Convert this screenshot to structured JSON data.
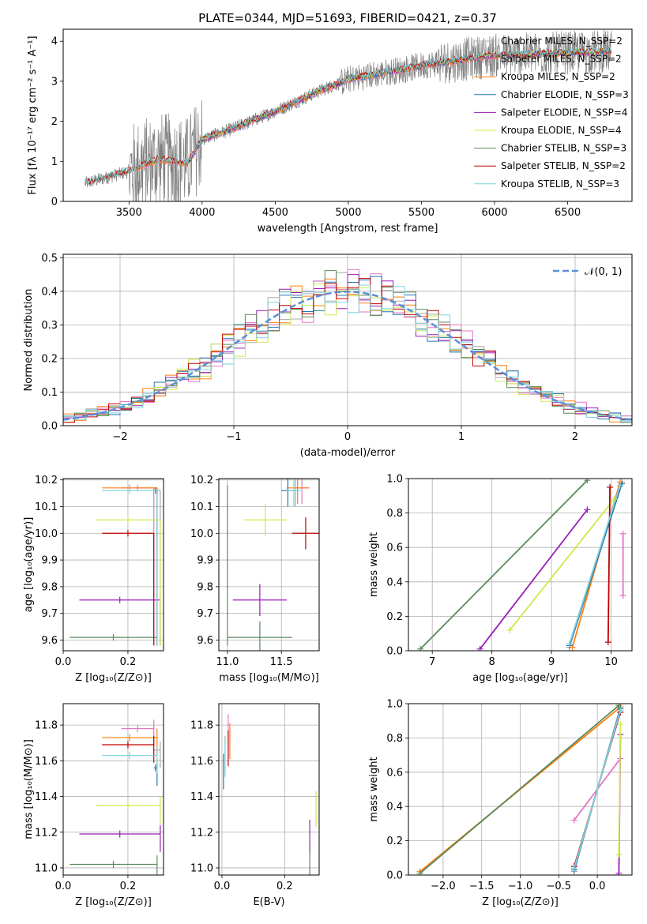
{
  "title": "PLATE=0344, MJD=51693, FIBERID=0421, z=0.37",
  "colors": {
    "chabrier_miles": "#aaaaaa",
    "salpeter_miles": "#e377c2",
    "kroupa_miles": "#ff7f0e",
    "chabrier_elodie": "#1f77b4",
    "salpeter_elodie": "#9a1ab8",
    "kroupa_elodie": "#cfe84a",
    "chabrier_stelib": "#5a8a5a",
    "salpeter_stelib": "#c00000",
    "kroupa_stelib": "#7fd3e0",
    "normal_curve": "#5b8fd6",
    "spectrum": "#808080"
  },
  "chart_data": [
    {
      "id": "spectrum",
      "type": "line",
      "xlabel": "wavelength [Angstrom, rest frame]",
      "ylabel": "Flux [fλ 10⁻¹⁷ erg cm⁻² s⁻¹ A⁻¹]",
      "xlim": [
        3050,
        6940
      ],
      "ylim": [
        0,
        4.3
      ],
      "xticks": [
        "3500",
        "4000",
        "4500",
        "5000",
        "5500",
        "6000",
        "6500"
      ],
      "yticks": [
        "0",
        "1",
        "2",
        "3",
        "4"
      ],
      "grid": false,
      "legend_position": "top-right",
      "data_range": [
        3200,
        6800
      ],
      "model_breakpoints": {
        "x": [
          3200,
          3350,
          3500,
          3700,
          3900,
          4000,
          4200,
          4500,
          4800,
          5000,
          5300,
          5600,
          6000,
          6400,
          6800
        ],
        "y": [
          0.45,
          0.6,
          0.75,
          1.05,
          0.95,
          1.55,
          1.8,
          2.25,
          2.75,
          3.05,
          3.25,
          3.45,
          3.65,
          3.7,
          3.75
        ]
      },
      "legend": [
        "Chabrier MILES, N_SSP=2",
        "Salpeter MILES, N_SSP=2",
        "Kroupa MILES, N_SSP=2",
        "Chabrier ELODIE, N_SSP=3",
        "Salpeter ELODIE, N_SSP=4",
        "Kroupa ELODIE, N_SSP=4",
        "Chabrier STELIB, N_SSP=3",
        "Salpeter STELIB, N_SSP=2",
        "Kroupa STELIB, N_SSP=3"
      ]
    },
    {
      "id": "residuals",
      "type": "line",
      "xlabel": "(data-model)/error",
      "ylabel": "Normed distribution",
      "xlim": [
        -2.5,
        2.5
      ],
      "ylim": [
        0,
        0.51
      ],
      "xticks": [
        "−2",
        "−1",
        "0",
        "1",
        "2"
      ],
      "yticks": [
        "0.0",
        "0.1",
        "0.2",
        "0.3",
        "0.4",
        "0.5"
      ],
      "grid": true,
      "legend_position": "top-right",
      "legend_label": "𝒩(0, 1)",
      "bin_width": 0.1
    },
    {
      "id": "age-vs-Z",
      "type": "scatter",
      "xlabel": "Z [log₁₀(Z/Z⊙)]",
      "ylabel": "age  [log₁₀(age/yr)]",
      "xlim": [
        0,
        0.31
      ],
      "ylim": [
        9.56,
        10.205
      ],
      "xticks": [
        "0.0",
        "0.2"
      ],
      "yticks": [
        "9.6",
        "9.7",
        "9.8",
        "9.9",
        "10.0",
        "10.1",
        "10.2"
      ],
      "grid": true
    },
    {
      "id": "age-vs-mass",
      "type": "scatter",
      "xlabel": "mass [log₁₀(M/M⊙)]",
      "xlim": [
        10.92,
        11.85
      ],
      "ylim": [
        9.56,
        10.205
      ],
      "xticks": [
        "11.0",
        "11.5"
      ],
      "yticks": [
        "9.6",
        "9.7",
        "9.8",
        "9.9",
        "10.0",
        "10.1",
        "10.2"
      ],
      "grid": true
    },
    {
      "id": "weight-vs-age",
      "type": "line",
      "xlabel": "age  [log₁₀(age/yr)]",
      "ylabel": "mass weight",
      "xlim": [
        6.6,
        10.35
      ],
      "ylim": [
        0,
        1
      ],
      "xticks": [
        "7",
        "8",
        "9",
        "10"
      ],
      "yticks": [
        "0.0",
        "0.2",
        "0.4",
        "0.6",
        "0.8",
        "1.0"
      ],
      "grid": true
    },
    {
      "id": "mass-vs-Z",
      "type": "scatter",
      "xlabel": "Z [log₁₀(Z/Z⊙)]",
      "ylabel": "mass [log₁₀(M/M⊙)]",
      "xlim": [
        0,
        0.31
      ],
      "ylim": [
        10.96,
        11.92
      ],
      "xticks": [
        "0.0",
        "0.2"
      ],
      "yticks": [
        "11.0",
        "11.2",
        "11.4",
        "11.6",
        "11.8"
      ],
      "grid": true
    },
    {
      "id": "mass-vs-ebv",
      "type": "scatter",
      "xlabel": "E(B-V)",
      "xlim": [
        -0.01,
        0.31
      ],
      "ylim": [
        10.96,
        11.92
      ],
      "xticks": [
        "0.0",
        "0.2"
      ],
      "yticks": [
        "11.0",
        "11.2",
        "11.4",
        "11.6",
        "11.8"
      ],
      "grid": true
    },
    {
      "id": "weight-vs-Z",
      "type": "line",
      "xlabel": "Z [log₁₀(Z/Z⊙)]",
      "ylabel": "mass weight",
      "xlim": [
        -2.45,
        0.45
      ],
      "ylim": [
        0,
        1
      ],
      "xticks": [
        "−2.0",
        "−1.5",
        "−1.0",
        "−0.5",
        "0.0"
      ],
      "yticks": [
        "0.0",
        "0.2",
        "0.4",
        "0.6",
        "0.8",
        "1.0"
      ],
      "grid": true
    }
  ],
  "fits": [
    {
      "key": "chabrier_miles",
      "age": [
        10.16,
        10.16
      ],
      "Z": [
        0.28,
        0.3
      ],
      "mass_tot": 11.66,
      "ebv": [
        0.01,
        0.01
      ],
      "w": [
        0.02,
        0.98
      ],
      "ages": [
        9.3,
        10.18
      ],
      "Zs": [
        -0.3,
        0.3
      ]
    },
    {
      "key": "salpeter_miles",
      "age": [
        10.17,
        10.17
      ],
      "Z": [
        0.18,
        0.28
      ],
      "mass_tot": 11.78,
      "ebv": [
        0.02,
        0.02
      ],
      "w": [
        0.32,
        0.68
      ],
      "ages": [
        10.2,
        10.2
      ],
      "Zs": [
        -0.3,
        0.3
      ]
    },
    {
      "key": "kroupa_miles",
      "age": [
        10.17,
        10.17
      ],
      "Z": [
        0.12,
        0.29
      ],
      "mass_tot": 11.73,
      "ebv": [
        0.025,
        0.025
      ],
      "w": [
        0.02,
        0.98
      ],
      "ages": [
        9.35,
        10.15
      ],
      "Zs": [
        -2.3,
        0.3
      ]
    },
    {
      "key": "chabrier_elodie",
      "age": [
        10.16,
        10.16
      ],
      "Z": [
        0.28,
        0.29
      ],
      "mass_tot": 11.56,
      "ebv": [
        0.005,
        0.005
      ],
      "w": [
        0.03,
        0.97
      ],
      "ages": [
        9.3,
        10.18
      ],
      "Zs": [
        -0.3,
        0.3
      ]
    },
    {
      "key": "salpeter_elodie",
      "age": [
        9.75,
        9.75
      ],
      "Z": [
        0.05,
        0.3
      ],
      "mass_tot": 11.19,
      "ebv": [
        0.28,
        0.28
      ],
      "w": [
        0.01,
        0.82
      ],
      "ages": [
        7.8,
        9.6
      ],
      "Zs": [
        0.28,
        0.3
      ]
    },
    {
      "key": "kroupa_elodie",
      "age": [
        10.05,
        10.05
      ],
      "Z": [
        0.1,
        0.3
      ],
      "mass_tot": 11.35,
      "ebv": [
        0.3,
        0.3
      ],
      "w": [
        0.12,
        0.88
      ],
      "ages": [
        8.3,
        10.05
      ],
      "Zs": [
        0.28,
        0.3
      ]
    },
    {
      "key": "chabrier_stelib",
      "age": [
        9.61,
        9.61
      ],
      "Z": [
        0.02,
        0.29
      ],
      "mass_tot": 11.02,
      "ebv": [
        0.28,
        0.28
      ],
      "w": [
        0.01,
        0.99
      ],
      "ages": [
        6.8,
        9.6
      ],
      "Zs": [
        -2.3,
        0.28
      ]
    },
    {
      "key": "salpeter_stelib",
      "age": [
        10.0,
        10.0
      ],
      "Z": [
        0.12,
        0.28
      ],
      "mass_tot": 11.69,
      "ebv": [
        0.02,
        0.02
      ],
      "w": [
        0.05,
        0.95
      ],
      "ages": [
        9.95,
        9.98
      ],
      "Zs": [
        -0.3,
        0.3
      ]
    },
    {
      "key": "kroupa_stelib",
      "age": [
        10.16,
        10.16
      ],
      "Z": [
        0.12,
        0.29
      ],
      "mass_tot": 11.63,
      "ebv": [
        0.01,
        0.01
      ],
      "w": [
        0.04,
        0.96
      ],
      "ages": [
        9.3,
        10.15
      ],
      "Zs": [
        -0.3,
        0.3
      ]
    }
  ]
}
